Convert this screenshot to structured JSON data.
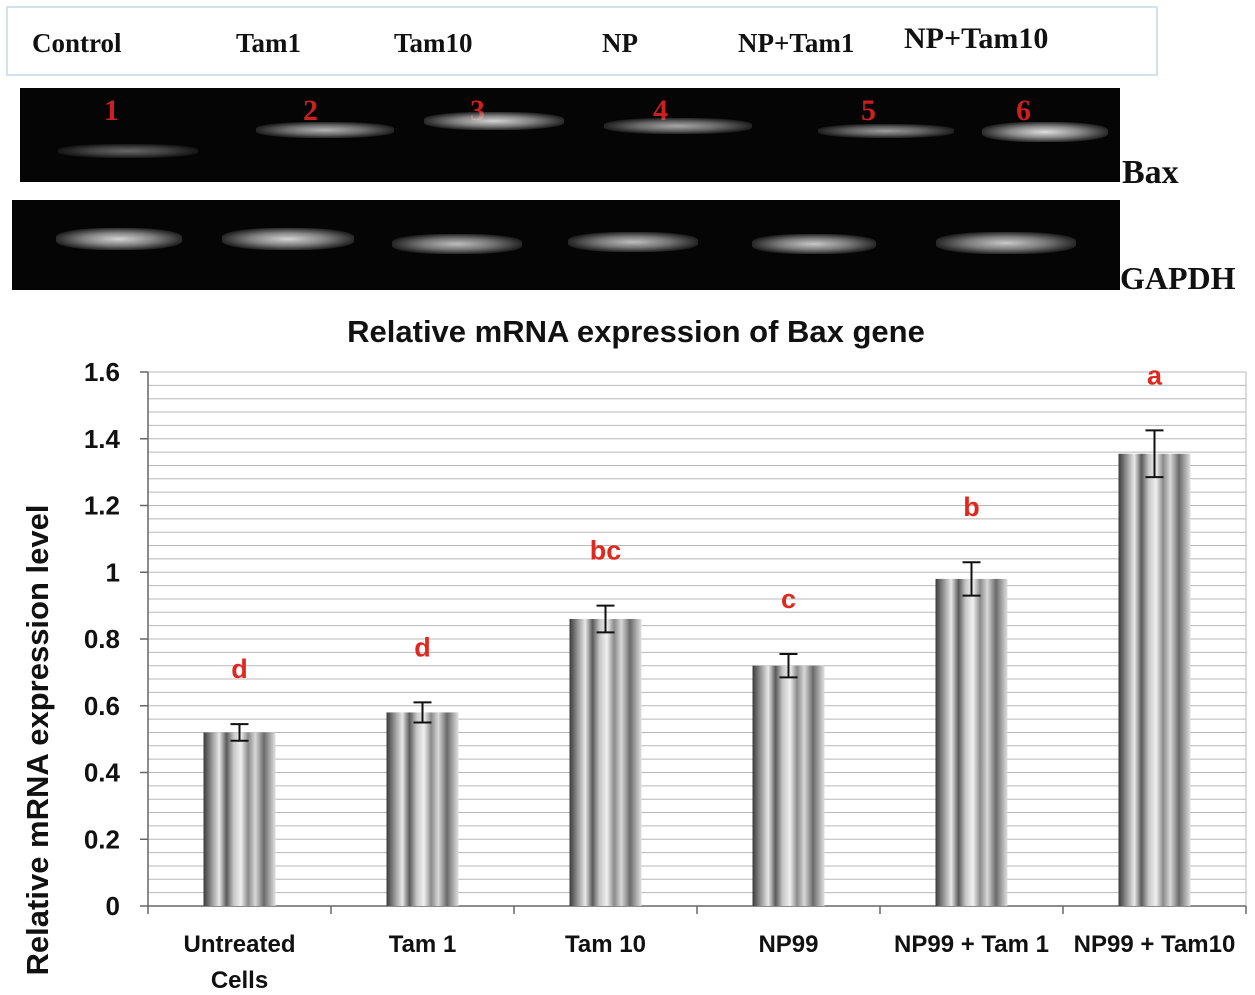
{
  "gel": {
    "lane_headers": [
      "Control",
      "Tam1",
      "Tam10",
      "NP",
      "NP+Tam1",
      "NP+Tam10"
    ],
    "lane_numbers": [
      "1",
      "2",
      "3",
      "4",
      "5",
      "6"
    ],
    "bax_label": "Bax",
    "gapdh_label": "GAPDH"
  },
  "chart_data": {
    "type": "bar",
    "title": "Relative mRNA expression of Bax gene",
    "xlabel": "",
    "ylabel": "Relative mRNA expression level",
    "categories": [
      [
        "Untreated",
        "Cells"
      ],
      [
        "Tam 1"
      ],
      [
        "Tam 10"
      ],
      [
        "NP99"
      ],
      [
        "NP99 + Tam 1"
      ],
      [
        "NP99 + Tam10"
      ]
    ],
    "values": [
      0.52,
      0.58,
      0.86,
      0.72,
      0.98,
      1.355
    ],
    "errors": [
      0.025,
      0.03,
      0.04,
      0.035,
      0.05,
      0.07
    ],
    "significance": [
      "d",
      "d",
      "bc",
      "c",
      "b",
      "a"
    ],
    "ylim": [
      0,
      1.6
    ],
    "yticks": [
      0,
      0.2,
      0.4,
      0.6,
      0.8,
      1,
      1.2,
      1.4,
      1.6
    ],
    "ytick_labels": [
      "0",
      "0.2",
      "0.4",
      "0.6",
      "0.8",
      "1",
      "1.2",
      "1.4",
      "1.6"
    ],
    "minor_grid_step": 0.04,
    "grid": true,
    "legend": false,
    "colors": {
      "bar_dark": "#3a3a3a",
      "bar_light": "#e8e8e8",
      "significance": "#e0281e",
      "grid": "#b8b8b8"
    }
  }
}
